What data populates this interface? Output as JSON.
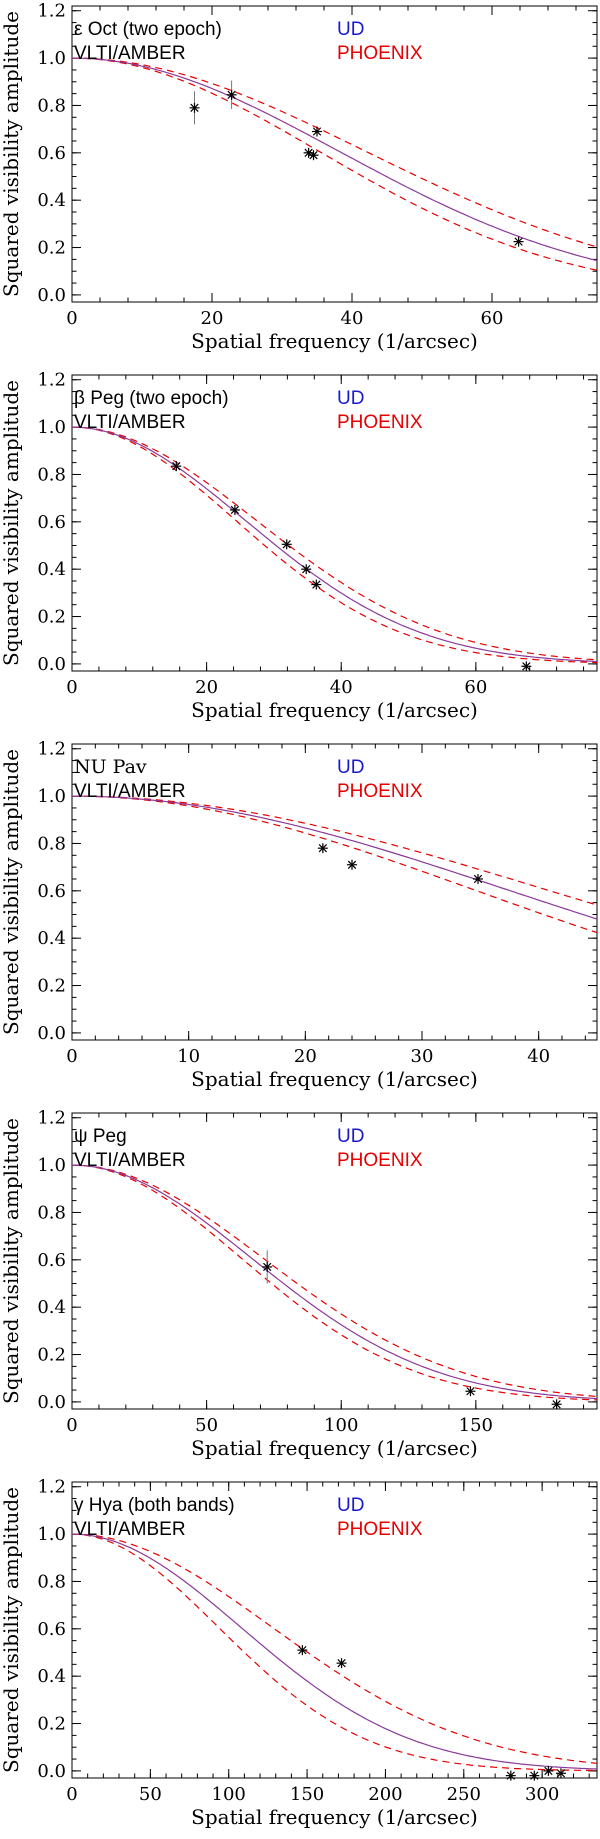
{
  "colors": {
    "axis": "#000000",
    "ud": "#1a1acc",
    "phoenix": "#e60000",
    "ud_line": "#8a3a9a",
    "data": "#000000"
  },
  "chart_data": [
    {
      "type": "scatter",
      "title": "",
      "xlabel": "Spatial frequency (1/arcsec)",
      "ylabel": "Squared visibility amplitude",
      "xlim": [
        0,
        75
      ],
      "ylim": [
        -0.03,
        1.22
      ],
      "xticks": [
        0,
        20,
        40,
        60
      ],
      "yticks": [
        0.0,
        0.2,
        0.4,
        0.6,
        0.8,
        1.0,
        1.2
      ],
      "labels": {
        "star": "ε Oct (two epoch)",
        "instrument": "VLTI/AMBER",
        "ud": "UD",
        "phoenix": "PHOENIX"
      },
      "model": {
        "width": 40.0,
        "sigma_lo": 37.0,
        "sigma_hi": 44.0
      },
      "points": [
        {
          "x": 17.5,
          "y": 0.79,
          "err": 0.07
        },
        {
          "x": 22.8,
          "y": 0.845,
          "err": 0.06
        },
        {
          "x": 33.8,
          "y": 0.6,
          "err": 0.02
        },
        {
          "x": 34.5,
          "y": 0.59,
          "err": 0.02
        },
        {
          "x": 35.0,
          "y": 0.69,
          "err": 0.02
        },
        {
          "x": 63.8,
          "y": 0.225,
          "err": 0.01
        }
      ]
    },
    {
      "type": "scatter",
      "title": "",
      "xlabel": "Spatial frequency (1/arcsec)",
      "ylabel": "Squared visibility amplitude",
      "xlim": [
        0,
        78
      ],
      "ylim": [
        -0.03,
        1.22
      ],
      "xticks": [
        0,
        20,
        40,
        60
      ],
      "yticks": [
        0.0,
        0.2,
        0.4,
        0.6,
        0.8,
        1.0,
        1.2
      ],
      "labels": {
        "star": "β Peg (two epoch)",
        "instrument": "VLTI/AMBER",
        "ud": "UD",
        "phoenix": "PHOENIX"
      },
      "model": {
        "width": 27.0,
        "sigma_lo": 25.5,
        "sigma_hi": 28.7
      },
      "points": [
        {
          "x": 15.5,
          "y": 0.835,
          "err": 0.01
        },
        {
          "x": 24.2,
          "y": 0.65,
          "err": 0.01
        },
        {
          "x": 31.9,
          "y": 0.505,
          "err": 0.01
        },
        {
          "x": 34.8,
          "y": 0.4,
          "err": 0.01
        },
        {
          "x": 36.3,
          "y": 0.335,
          "err": 0.01
        },
        {
          "x": 67.5,
          "y": -0.01,
          "err": 0.01
        }
      ]
    },
    {
      "type": "scatter",
      "title": "",
      "xlabel": "Spatial frequency (1/arcsec)",
      "ylabel": "Squared visibility amplitude",
      "xlim": [
        0,
        45
      ],
      "ylim": [
        -0.03,
        1.22
      ],
      "xticks": [
        0,
        10,
        20,
        30,
        40
      ],
      "yticks": [
        0.0,
        0.2,
        0.4,
        0.6,
        0.8,
        1.0,
        1.2
      ],
      "labels": {
        "star": "NU Pav",
        "instrument": "VLTI/AMBER",
        "ud": "UD",
        "phoenix": "PHOENIX"
      },
      "model": {
        "width": 39.0,
        "sigma_lo": 36.0,
        "sigma_hi": 42.5
      },
      "points": [
        {
          "x": 21.5,
          "y": 0.78,
          "err": 0.01
        },
        {
          "x": 24.0,
          "y": 0.71,
          "err": 0.01
        },
        {
          "x": 34.8,
          "y": 0.65,
          "err": 0.01
        }
      ]
    },
    {
      "type": "scatter",
      "title": "",
      "xlabel": "Spatial frequency (1/arcsec)",
      "ylabel": "Squared visibility amplitude",
      "xlim": [
        0,
        195
      ],
      "ylim": [
        -0.03,
        1.22
      ],
      "xticks": [
        0,
        50,
        100,
        150
      ],
      "yticks": [
        0.0,
        0.2,
        0.4,
        0.6,
        0.8,
        1.0,
        1.2
      ],
      "labels": {
        "star": "ψ Peg",
        "instrument": "VLTI/AMBER",
        "ud": "UD",
        "phoenix": "PHOENIX"
      },
      "model": {
        "width": 70.0,
        "sigma_lo": 66.0,
        "sigma_hi": 74.5
      },
      "points": [
        {
          "x": 72.5,
          "y": 0.57,
          "err": 0.07
        },
        {
          "x": 148.0,
          "y": 0.045,
          "err": 0.01
        },
        {
          "x": 180.0,
          "y": -0.01,
          "err": 0.01
        }
      ]
    },
    {
      "type": "scatter",
      "title": "",
      "xlabel": "Spatial frequency (1/arcsec)",
      "ylabel": "Squared visibility amplitude",
      "xlim": [
        0,
        335
      ],
      "ylim": [
        -0.03,
        1.22
      ],
      "xticks": [
        0,
        50,
        100,
        150,
        200,
        250,
        300
      ],
      "yticks": [
        0.0,
        0.2,
        0.4,
        0.6,
        0.8,
        1.0,
        1.2
      ],
      "labels": {
        "star": "γ Hya (both bands)",
        "instrument": "VLTI/AMBER",
        "ud": "UD",
        "phoenix": "PHOENIX"
      },
      "model": {
        "width": 113.0,
        "sigma_lo": 98.0,
        "sigma_hi": 134.0
      },
      "points": [
        {
          "x": 147.0,
          "y": 0.51,
          "err": 0.01
        },
        {
          "x": 172.0,
          "y": 0.455,
          "err": 0.01
        },
        {
          "x": 280.0,
          "y": -0.02,
          "err": 0.01
        },
        {
          "x": 295.0,
          "y": -0.02,
          "err": 0.01
        },
        {
          "x": 304.0,
          "y": 0.0,
          "err": 0.01
        },
        {
          "x": 312.0,
          "y": -0.01,
          "err": 0.01
        }
      ]
    }
  ]
}
